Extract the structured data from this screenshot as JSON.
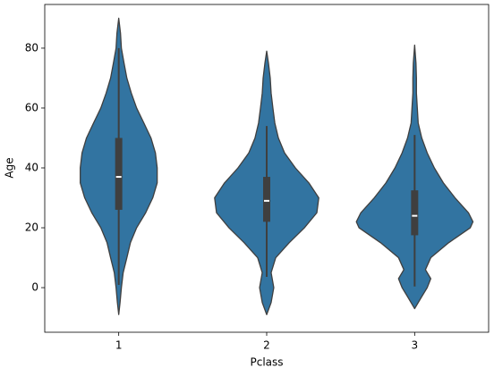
{
  "chart_data": {
    "type": "violin",
    "x_label": "Pclass",
    "y_label": "Age",
    "categories": [
      "1",
      "2",
      "3"
    ],
    "color": "#3274a1",
    "line_color": "#3f3f3f",
    "ylim": [
      -14.9,
      94.6
    ],
    "yticks": [
      0,
      20,
      40,
      60,
      80
    ],
    "violins": [
      {
        "y": [
          -9,
          -5,
          0,
          5,
          10,
          15,
          20,
          25,
          30,
          35,
          40,
          45,
          50,
          55,
          60,
          65,
          70,
          75,
          80,
          85,
          90
        ],
        "half_width": [
          0,
          0.009,
          0.018,
          0.03,
          0.055,
          0.079,
          0.121,
          0.182,
          0.23,
          0.26,
          0.26,
          0.248,
          0.218,
          0.17,
          0.121,
          0.085,
          0.055,
          0.036,
          0.018,
          0.012,
          0
        ],
        "whisker_low": 0.9,
        "q1": 26,
        "median": 37,
        "q3": 50,
        "whisker_high": 80
      },
      {
        "y": [
          -9,
          -5,
          0,
          5,
          10,
          15,
          20,
          25,
          30,
          35,
          40,
          45,
          50,
          55,
          60,
          65,
          70,
          75,
          79
        ],
        "half_width": [
          0,
          0.03,
          0.048,
          0.03,
          0.061,
          0.152,
          0.255,
          0.339,
          0.352,
          0.285,
          0.194,
          0.121,
          0.079,
          0.055,
          0.042,
          0.03,
          0.024,
          0.012,
          0
        ],
        "whisker_low": 3.6,
        "q1": 22,
        "median": 29,
        "q3": 37,
        "whisker_high": 54
      },
      {
        "y": [
          -7,
          -3,
          0,
          3,
          6,
          10,
          15,
          20,
          22,
          25,
          30,
          35,
          40,
          45,
          50,
          55,
          60,
          65,
          70,
          75,
          81
        ],
        "half_width": [
          0,
          0.048,
          0.085,
          0.109,
          0.073,
          0.109,
          0.23,
          0.376,
          0.394,
          0.364,
          0.273,
          0.194,
          0.133,
          0.085,
          0.048,
          0.024,
          0.018,
          0.012,
          0.012,
          0.009,
          0
        ],
        "whisker_low": 0.4,
        "q1": 17.5,
        "median": 24,
        "q3": 32.5,
        "whisker_high": 51
      }
    ]
  }
}
